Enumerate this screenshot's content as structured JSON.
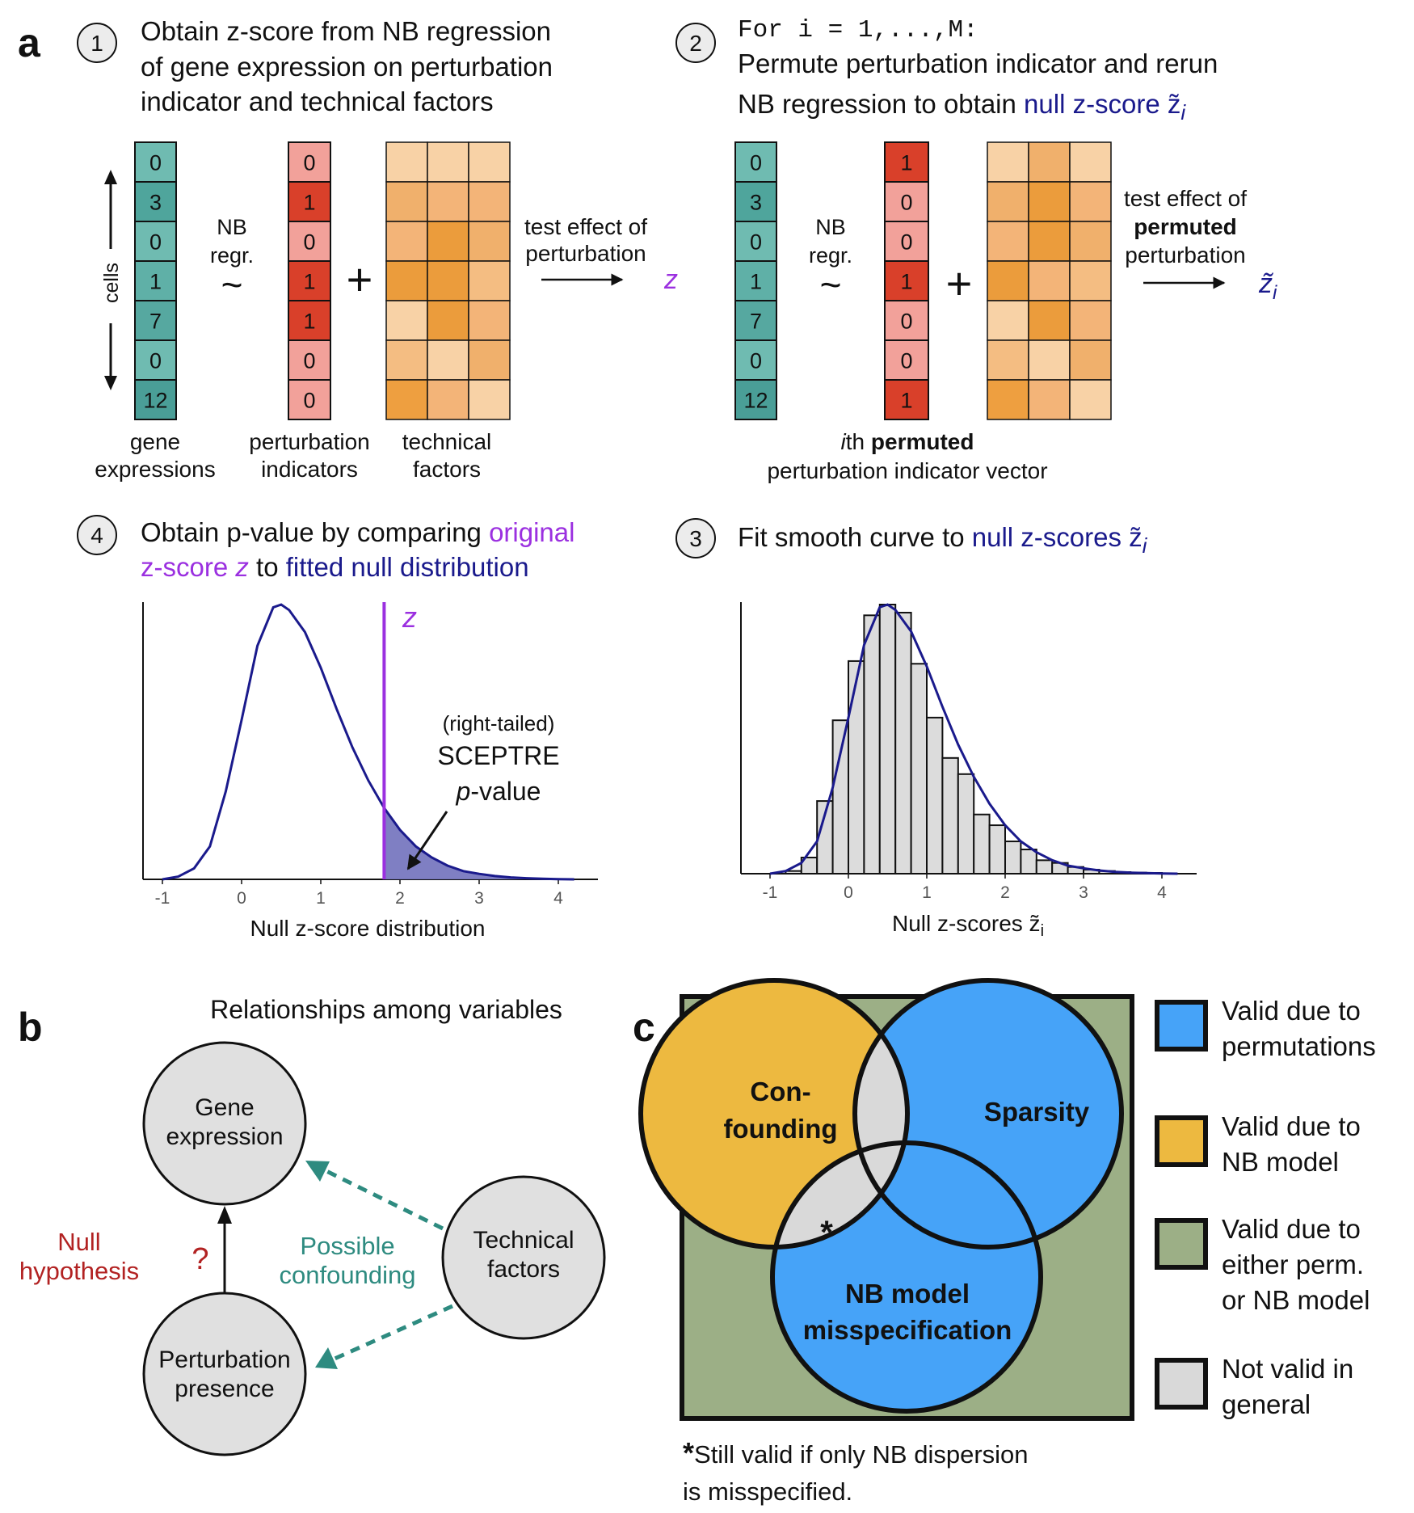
{
  "panel_labels": {
    "a": "a",
    "b": "b",
    "c": "c"
  },
  "colors": {
    "purple": "#9b30e0",
    "navy": "#1a1a8c",
    "teal_text": "#2e8b80",
    "red_text": "#b22222",
    "venn_background": "#9caf86",
    "venn_orange": "#edb940",
    "venn_blue": "#46a3f8",
    "venn_gray": "#d9d9d9"
  },
  "step1": {
    "number": "1",
    "title_lines": [
      "Obtain z-score from NB regression",
      "of gene expression on perturbation",
      "indicator and technical factors"
    ],
    "cells_label": "cells",
    "gene_values": [
      "0",
      "3",
      "0",
      "1",
      "7",
      "0",
      "12"
    ],
    "perturbation_values": [
      "0",
      "1",
      "0",
      "1",
      "1",
      "0",
      "0"
    ],
    "nb_regr": [
      "NB",
      "regr."
    ],
    "tilde": "~",
    "plus": "+",
    "test_effect": [
      "test effect of",
      "perturbation"
    ],
    "z": "z",
    "gene_label": [
      "gene",
      "expressions"
    ],
    "perturbation_label": [
      "perturbation",
      "indicators"
    ],
    "technical_label": [
      "technical",
      "factors"
    ]
  },
  "step2": {
    "number": "2",
    "code_line": "For i = 1,...,M:",
    "title_line2": "Permute perturbation indicator and rerun",
    "title_line3_prefix": "NB regression to obtain ",
    "title_line3_colored": "null z-score z̃",
    "title_subscript": "i",
    "gene_values": [
      "0",
      "3",
      "0",
      "1",
      "7",
      "0",
      "12"
    ],
    "permuted_values": [
      "1",
      "0",
      "0",
      "1",
      "0",
      "0",
      "1"
    ],
    "nb_regr": [
      "NB",
      "regr."
    ],
    "tilde": "~",
    "plus": "+",
    "test_effect": [
      "test effect of",
      "permuted",
      "perturbation"
    ],
    "ztilde": "z̃",
    "ztilde_sub": "i",
    "label_line1_italic": "i",
    "label_line1_rest": "th ",
    "label_line1_bold": "permuted",
    "label_line2": "perturbation indicator vector"
  },
  "step3": {
    "number": "3",
    "title_prefix": "Fit smooth curve to ",
    "title_colored": "null z-scores z̃",
    "title_subscript": "i",
    "xlabel": "Null z-scores z̃",
    "xlabel_sub": "i"
  },
  "step4": {
    "number": "4",
    "title_line1_prefix": "Obtain p-value by comparing ",
    "title_line1_colored": "original",
    "title_line2_colored1": "z-score ",
    "title_line2_z": "z",
    "title_line2_middle": " to ",
    "title_line2_colored2": "fitted null distribution",
    "z_label": "z",
    "annotation": [
      "(right-tailed)",
      "SCEPTRE"
    ],
    "annotation_p": "p",
    "annotation_value": "-value",
    "xlabel": "Null z-score distribution"
  },
  "panel_b": {
    "title": "Relationships among variables",
    "gene_node": [
      "Gene",
      "expression"
    ],
    "technical_node": [
      "Technical",
      "factors"
    ],
    "perturbation_node": [
      "Perturbation",
      "presence"
    ],
    "null_label": [
      "Null",
      "hypothesis"
    ],
    "question": "?",
    "confounding_label": [
      "Possible",
      "confounding"
    ]
  },
  "panel_c": {
    "confounding": [
      "Con-",
      "founding"
    ],
    "sparsity": "Sparsity",
    "misspec": [
      "NB model",
      "misspecification"
    ],
    "asterisk": "*",
    "footnote_star": "*",
    "footnote": [
      "Still valid if only NB dispersion",
      "is misspecified."
    ],
    "legend": [
      {
        "lines": [
          "Valid due to",
          "permutations"
        ],
        "color": "#46a3f8"
      },
      {
        "lines": [
          "Valid due to",
          "NB model"
        ],
        "color": "#edb940"
      },
      {
        "lines": [
          "Valid due to",
          "either perm.",
          "or NB model"
        ],
        "color": "#9caf86"
      },
      {
        "lines": [
          "Not valid in",
          "general"
        ],
        "color": "#d9d9d9"
      }
    ]
  },
  "chart_data": [
    {
      "type": "area",
      "x": [
        -1,
        -0.8,
        -0.6,
        -0.4,
        -0.2,
        0,
        0.2,
        0.4,
        0.5,
        0.6,
        0.8,
        1.0,
        1.2,
        1.4,
        1.6,
        1.8,
        2.0,
        2.2,
        2.4,
        2.6,
        2.8,
        3.0,
        3.2,
        3.4,
        3.6,
        3.8,
        4.0,
        4.2
      ],
      "y": [
        0.0,
        0.01,
        0.04,
        0.12,
        0.32,
        0.58,
        0.85,
        0.99,
        1.0,
        0.98,
        0.9,
        0.77,
        0.62,
        0.48,
        0.36,
        0.26,
        0.18,
        0.12,
        0.08,
        0.05,
        0.03,
        0.02,
        0.012,
        0.007,
        0.004,
        0.002,
        0.001,
        0.0
      ],
      "observed_z": 1.8,
      "xticks": [
        "-1",
        "0",
        "1",
        "2",
        "3",
        "4"
      ],
      "xlim": [
        -1.2,
        4.5
      ],
      "xlabel": "Null z-score distribution",
      "grid": false
    },
    {
      "type": "bar",
      "bin_starts": [
        -0.8,
        -0.6,
        -0.4,
        -0.2,
        0.0,
        0.2,
        0.4,
        0.6,
        0.8,
        1.0,
        1.2,
        1.4,
        1.6,
        1.8,
        2.0,
        2.2,
        2.4,
        2.6,
        2.8,
        3.0,
        3.2,
        3.4,
        3.6,
        3.8
      ],
      "bin_width": 0.2,
      "values": [
        0.01,
        0.06,
        0.27,
        0.57,
        0.79,
        0.96,
        1.0,
        0.97,
        0.78,
        0.58,
        0.43,
        0.37,
        0.22,
        0.18,
        0.12,
        0.09,
        0.05,
        0.04,
        0.025,
        0.015,
        0.01,
        0.006,
        0.004,
        0.003
      ],
      "curve_x": [
        -1,
        -0.8,
        -0.6,
        -0.4,
        -0.2,
        0,
        0.2,
        0.4,
        0.5,
        0.6,
        0.8,
        1.0,
        1.2,
        1.4,
        1.6,
        1.8,
        2.0,
        2.2,
        2.4,
        2.6,
        2.8,
        3.0,
        3.2,
        3.4,
        3.6,
        3.8,
        4.0,
        4.2
      ],
      "curve_y": [
        0.0,
        0.01,
        0.04,
        0.12,
        0.32,
        0.58,
        0.85,
        0.99,
        1.0,
        0.98,
        0.9,
        0.77,
        0.62,
        0.48,
        0.36,
        0.26,
        0.18,
        0.12,
        0.08,
        0.05,
        0.03,
        0.02,
        0.012,
        0.007,
        0.004,
        0.002,
        0.001,
        0.0
      ],
      "xticks": [
        "-1",
        "0",
        "1",
        "2",
        "3",
        "4"
      ],
      "xlim": [
        -1.2,
        4.5
      ],
      "xlabel": "Null z-scores z̃i",
      "grid": false
    }
  ]
}
